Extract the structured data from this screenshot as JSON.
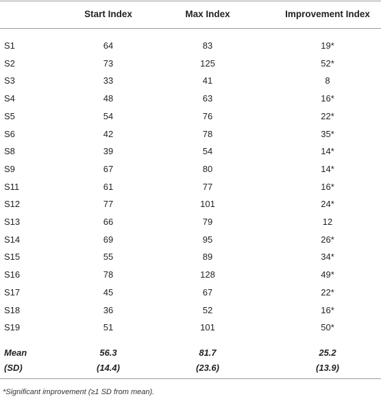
{
  "table": {
    "columns": [
      "",
      "Start Index",
      "Max Index",
      "Improvement Index"
    ],
    "rows": [
      [
        "S1",
        64,
        83,
        "19*"
      ],
      [
        "S2",
        73,
        125,
        "52*"
      ],
      [
        "S3",
        33,
        41,
        8
      ],
      [
        "S4",
        48,
        63,
        "16*"
      ],
      [
        "S5",
        54,
        76,
        "22*"
      ],
      [
        "S6",
        42,
        78,
        "35*"
      ],
      [
        "S8",
        39,
        54,
        "14*"
      ],
      [
        "S9",
        67,
        80,
        "14*"
      ],
      [
        "S11",
        61,
        77,
        "16*"
      ],
      [
        "S12",
        77,
        101,
        "24*"
      ],
      [
        "S13",
        66,
        79,
        12
      ],
      [
        "S14",
        69,
        95,
        "26*"
      ],
      [
        "S15",
        55,
        89,
        "34*"
      ],
      [
        "S16",
        78,
        128,
        "49*"
      ],
      [
        "S17",
        45,
        67,
        "22*"
      ],
      [
        "S18",
        36,
        52,
        "16*"
      ],
      [
        "S19",
        51,
        101,
        "50*"
      ]
    ],
    "summary": [
      [
        "Mean",
        56.3,
        81.7,
        25.2
      ],
      [
        "(SD)",
        "(14.4)",
        "(23.6)",
        "(13.9)"
      ]
    ],
    "footnote": "*Significant improvement (≥1 SD from mean)."
  }
}
